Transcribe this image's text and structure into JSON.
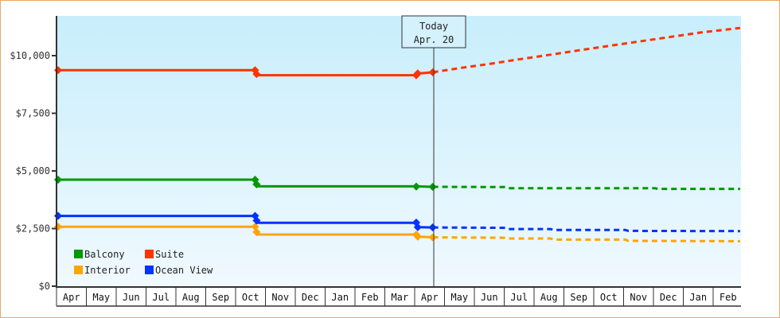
{
  "chart_data": {
    "type": "line",
    "title": "",
    "xlabel": "",
    "ylabel": "",
    "ylim": [
      0,
      11700
    ],
    "grid": false,
    "legend_position": "bottom-left inside plot",
    "y_ticks": [
      "$0",
      "$2,500",
      "$5,000",
      "$7,500",
      "$10,000"
    ],
    "y_tick_values": [
      0,
      2500,
      5000,
      7500,
      10000
    ],
    "x_ticks": [
      "Apr",
      "May",
      "Jun",
      "Jul",
      "Aug",
      "Sep",
      "Oct",
      "Nov",
      "Dec",
      "Jan",
      "Feb",
      "Mar",
      "Apr",
      "May",
      "Jun",
      "Jul",
      "Aug",
      "Sep",
      "Oct",
      "Nov",
      "Dec",
      "Jan",
      "Feb"
    ],
    "annotation": {
      "line1": "Today",
      "line2": "Apr. 20"
    },
    "series": [
      {
        "name": "Suite",
        "color": "#ff3300",
        "history": [
          [
            0,
            9370
          ],
          [
            6.6,
            9370
          ],
          [
            6.65,
            9150
          ],
          [
            12.0,
            9150
          ],
          [
            12.05,
            9220
          ],
          [
            12.55,
            9280
          ]
        ],
        "history_markers": [
          [
            0,
            9370
          ],
          [
            6.6,
            9370
          ],
          [
            6.65,
            9200
          ],
          [
            12.0,
            9150
          ],
          [
            12.05,
            9230
          ],
          [
            12.55,
            9280
          ]
        ],
        "forecast": [
          [
            12.55,
            9280
          ],
          [
            13.5,
            9470
          ],
          [
            14.5,
            9650
          ],
          [
            15.5,
            9850
          ],
          [
            16.5,
            10040
          ],
          [
            17.5,
            10240
          ],
          [
            18.5,
            10430
          ],
          [
            19.5,
            10620
          ],
          [
            20.5,
            10810
          ],
          [
            21.5,
            11000
          ],
          [
            22.85,
            11200
          ]
        ]
      },
      {
        "name": "Balcony",
        "color": "#009900",
        "history": [
          [
            0,
            4620
          ],
          [
            6.6,
            4620
          ],
          [
            6.65,
            4330
          ],
          [
            12.0,
            4330
          ],
          [
            12.55,
            4310
          ]
        ],
        "history_markers": [
          [
            0,
            4620
          ],
          [
            6.6,
            4620
          ],
          [
            6.65,
            4420
          ],
          [
            12.0,
            4320
          ],
          [
            12.55,
            4310
          ]
        ],
        "forecast": [
          [
            12.55,
            4310
          ],
          [
            15.0,
            4300
          ],
          [
            15.1,
            4250
          ],
          [
            20.0,
            4250
          ],
          [
            20.1,
            4220
          ],
          [
            22.85,
            4220
          ]
        ]
      },
      {
        "name": "Interior",
        "color": "#ffa500",
        "history": [
          [
            0,
            2580
          ],
          [
            6.6,
            2580
          ],
          [
            6.65,
            2240
          ],
          [
            12.0,
            2240
          ],
          [
            12.05,
            2150
          ],
          [
            12.55,
            2120
          ]
        ],
        "history_markers": [
          [
            0,
            2580
          ],
          [
            6.6,
            2580
          ],
          [
            6.65,
            2350
          ],
          [
            12.0,
            2240
          ],
          [
            12.05,
            2150
          ],
          [
            12.55,
            2120
          ]
        ],
        "forecast": [
          [
            12.55,
            2120
          ],
          [
            15.0,
            2100
          ],
          [
            15.1,
            2070
          ],
          [
            16.5,
            2070
          ],
          [
            16.6,
            2020
          ],
          [
            19.0,
            2020
          ],
          [
            19.1,
            1970
          ],
          [
            22.85,
            1950
          ]
        ]
      },
      {
        "name": "Ocean View",
        "color": "#0033ff",
        "history": [
          [
            0,
            3050
          ],
          [
            6.6,
            3050
          ],
          [
            6.65,
            2750
          ],
          [
            12.0,
            2750
          ],
          [
            12.05,
            2560
          ],
          [
            12.55,
            2550
          ]
        ],
        "history_markers": [
          [
            0,
            3050
          ],
          [
            6.6,
            3050
          ],
          [
            6.65,
            2850
          ],
          [
            12.0,
            2760
          ],
          [
            12.05,
            2560
          ],
          [
            12.55,
            2550
          ]
        ],
        "forecast": [
          [
            12.55,
            2550
          ],
          [
            15.0,
            2530
          ],
          [
            15.1,
            2480
          ],
          [
            16.5,
            2480
          ],
          [
            16.6,
            2440
          ],
          [
            19.0,
            2440
          ],
          [
            19.1,
            2400
          ],
          [
            22.85,
            2390
          ]
        ]
      }
    ]
  },
  "legend": {
    "items": [
      {
        "label": "Balcony",
        "color": "#009900"
      },
      {
        "label": "Suite",
        "color": "#ff3300"
      },
      {
        "label": "Interior",
        "color": "#ffa500"
      },
      {
        "label": "Ocean View",
        "color": "#0033ff"
      }
    ]
  },
  "colors": {
    "border": "#e8a860",
    "plot_bg_top": "#c8eefc",
    "plot_bg_bottom": "#f0f9fe",
    "axis": "#333333"
  }
}
